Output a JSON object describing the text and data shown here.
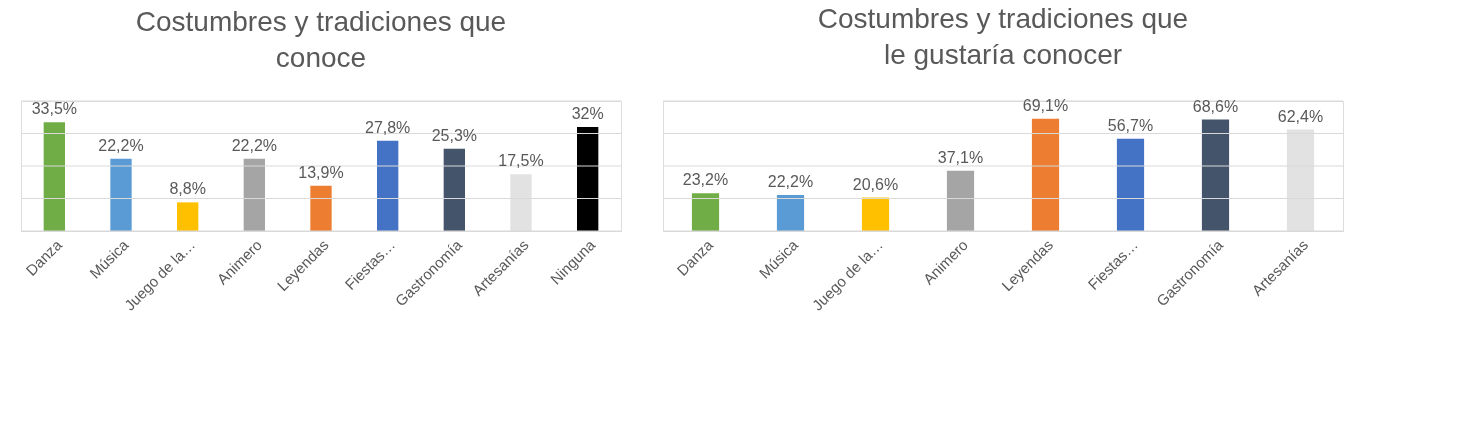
{
  "chart_data": [
    {
      "type": "bar",
      "title": "Costumbres y tradiciones que conoce",
      "categories": [
        "Danza",
        "Música",
        "Juego de la…",
        "Animero",
        "Leyendas",
        "Fiestas…",
        "Gastronomía",
        "Artesanías",
        "Ninguna"
      ],
      "values": [
        33.5,
        22.2,
        8.8,
        22.2,
        13.9,
        27.8,
        25.3,
        17.5,
        32
      ],
      "colors": [
        "#70ad47",
        "#5b9bd5",
        "#ffc000",
        "#a5a5a5",
        "#ed7d31",
        "#4472c4",
        "#44546a",
        "#e2e2e2",
        "#000000"
      ],
      "value_labels": [
        "33,5%",
        "22,2%",
        "8,8%",
        "22,2%",
        "13,9%",
        "27,8%",
        "25,3%",
        "17,5%",
        "32%"
      ],
      "ylim": [
        0,
        40
      ],
      "yticks": [
        {
          "value": 0,
          "label": null
        },
        {
          "value": 10,
          "label": null
        },
        {
          "value": 20,
          "label": null
        },
        {
          "value": 30,
          "label": null
        },
        {
          "value": 40,
          "label": null
        }
      ],
      "grid": "y",
      "tick_labels": "x"
    },
    {
      "type": "bar",
      "title": "Costumbres y tradiciones que le gustaría conocer",
      "categories": [
        "Danza",
        "Música",
        "Juego de la…",
        "Animero",
        "Leyendas",
        "Fiestas…",
        "Gastronomía",
        "Artesanías"
      ],
      "values": [
        23.2,
        22.2,
        20.6,
        37.1,
        69.1,
        56.7,
        68.6,
        62.4
      ],
      "colors": [
        "#70ad47",
        "#5b9bd5",
        "#ffc000",
        "#a5a5a5",
        "#ed7d31",
        "#4472c4",
        "#44546a",
        "#e2e2e2"
      ],
      "value_labels": [
        "23,2%",
        "22,2%",
        "20,6%",
        "37,1%",
        "69,1%",
        "56,7%",
        "68,6%",
        "62,4%"
      ],
      "ylim": [
        0,
        80
      ],
      "yticks": [
        {
          "value": 0,
          "label": null
        },
        {
          "value": 20,
          "label": null
        },
        {
          "value": 40,
          "label": null
        },
        {
          "value": 60,
          "label": null
        },
        {
          "value": 80,
          "label": null
        }
      ],
      "grid": "y",
      "tick_labels": "x"
    }
  ]
}
